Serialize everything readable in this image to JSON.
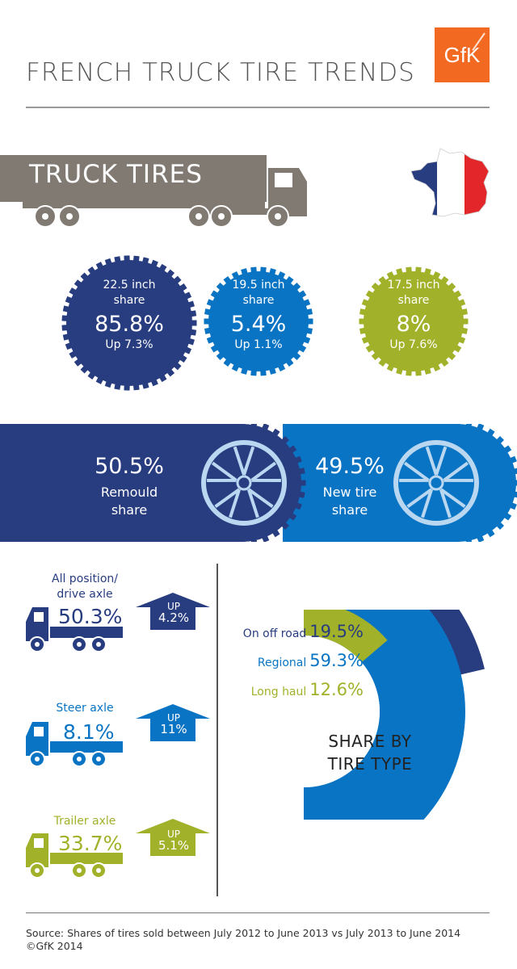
{
  "header": {
    "title": "FRENCH TRUCK TIRE TRENDS",
    "logo_text": "GfK"
  },
  "truck_banner": {
    "label": "TRUCK TIRES"
  },
  "colors": {
    "dark_blue": "#283c80",
    "mid_blue": "#0a74c4",
    "olive": "#a2b12a",
    "grey": "#807a73",
    "orange": "#f26a21",
    "light_wheel": "#b9d7f0"
  },
  "size_shares": [
    {
      "size": "22.5 inch",
      "line2": "share",
      "value": "85.8%",
      "change": "Up 7.3%"
    },
    {
      "size": "19.5 inch",
      "line2": "share",
      "value": "5.4%",
      "change": "Up 1.1%"
    },
    {
      "size": "17.5 inch",
      "line2": "share",
      "value": "8%",
      "change": "Up 7.6%"
    }
  ],
  "remould_new": {
    "remould": {
      "value": "50.5%",
      "line1": "Remould",
      "line2": "share"
    },
    "new": {
      "value": "49.5%",
      "line1": "New tire",
      "line2": "share"
    }
  },
  "axles": [
    {
      "label1": "All position/",
      "label2": "drive axle",
      "value": "50.3%",
      "arrow_label": "UP",
      "arrow_value": "4.2%"
    },
    {
      "label1": "Steer axle",
      "label2": "",
      "value": "8.1%",
      "arrow_label": "UP",
      "arrow_value": "11%"
    },
    {
      "label1": "Trailer axle",
      "label2": "",
      "value": "33.7%",
      "arrow_label": "UP",
      "arrow_value": "5.1%"
    }
  ],
  "tire_type": {
    "title1": "SHARE BY",
    "title2": "TIRE TYPE",
    "items": [
      {
        "label": "On off road",
        "value": "19.5%"
      },
      {
        "label": "Regional",
        "value": "59.3%"
      },
      {
        "label": "Long haul",
        "value": "12.6%"
      }
    ]
  },
  "chart_data": {
    "type": "donut",
    "title": "SHARE BY TIRE TYPE",
    "categories": [
      "On off road",
      "Regional",
      "Long haul"
    ],
    "values": [
      19.5,
      59.3,
      12.6
    ],
    "unit": "%"
  },
  "footer": {
    "source": "Source: Shares of tires sold between July 2012 to June 2013 vs July 2013 to June 2014",
    "copyright": "©GfK 2014"
  }
}
